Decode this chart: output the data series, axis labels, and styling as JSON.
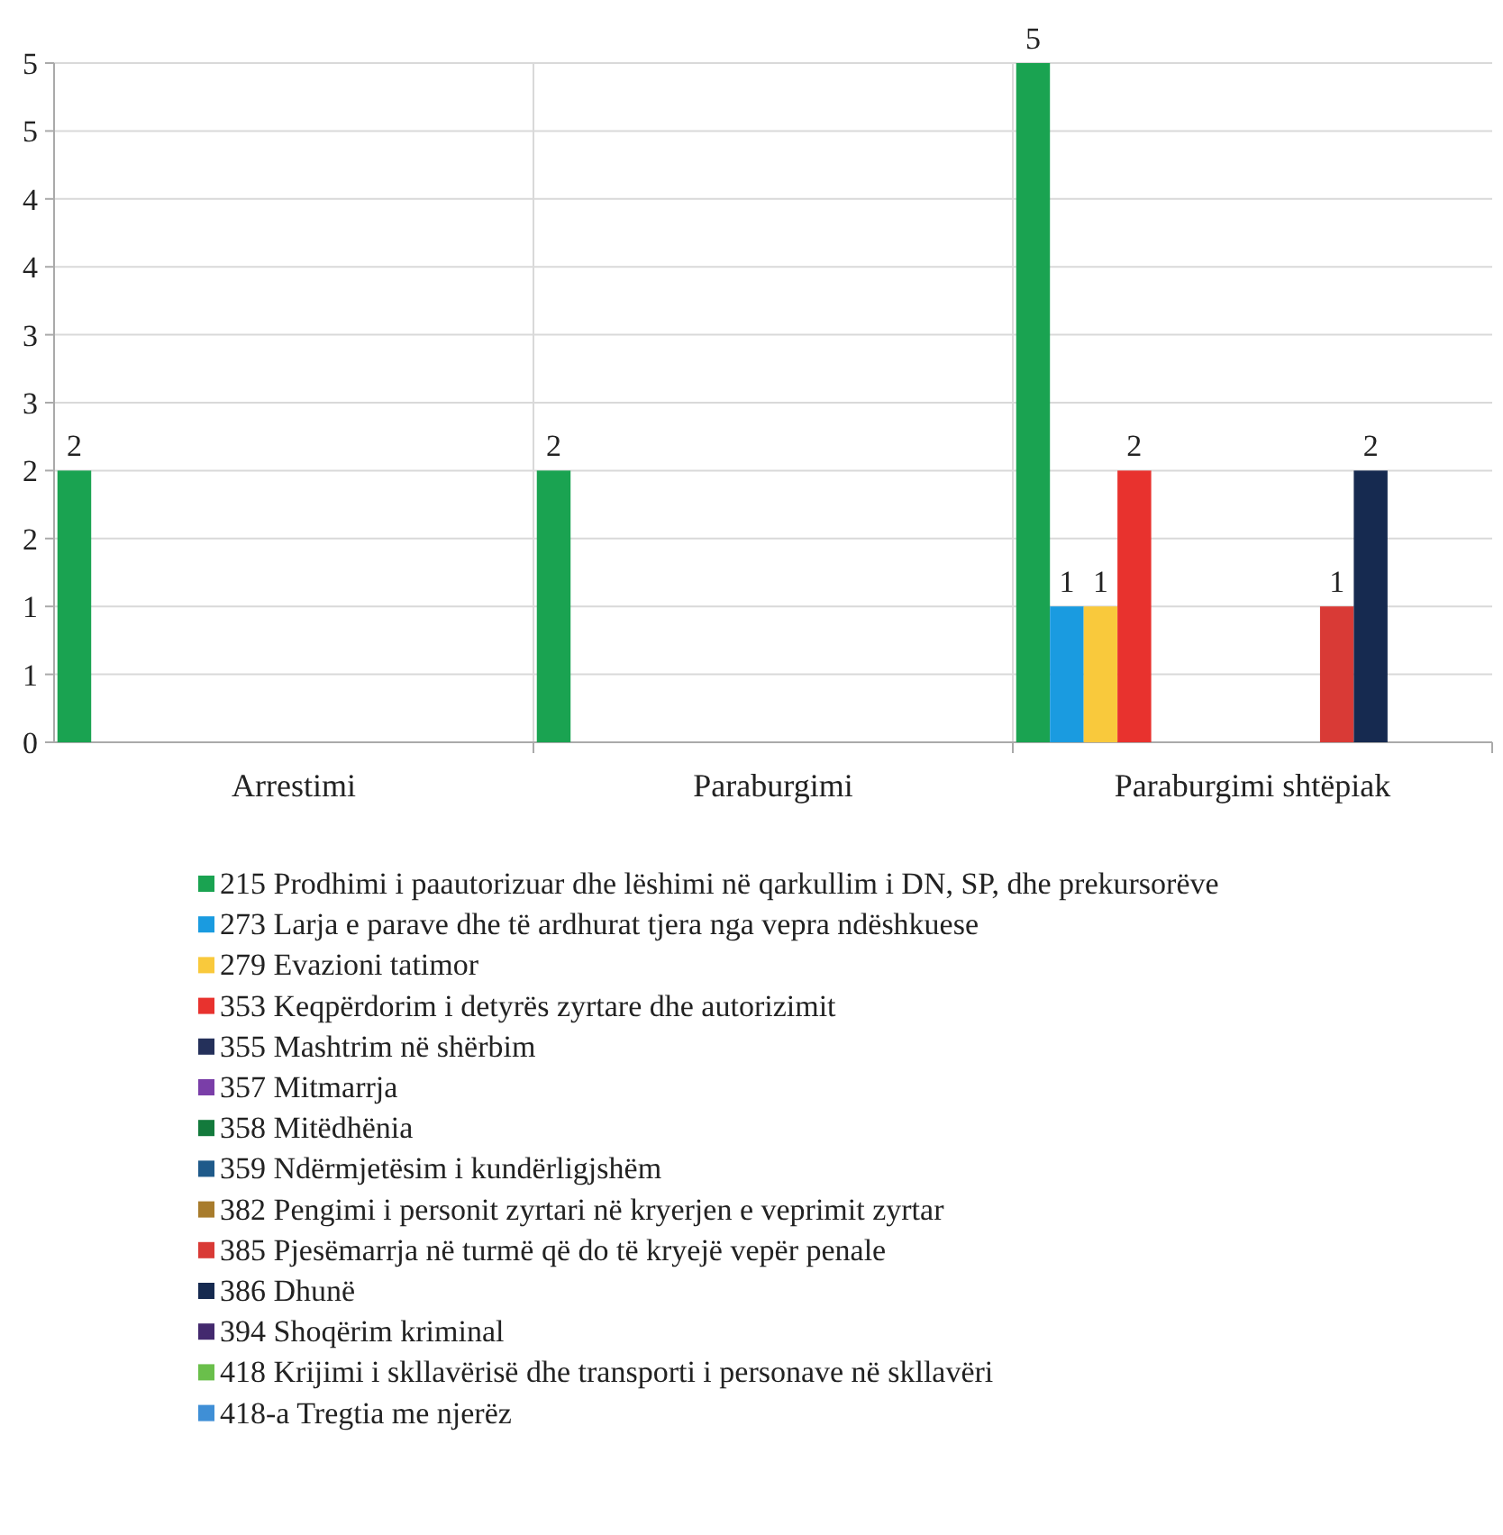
{
  "chart_data": {
    "type": "bar",
    "categories": [
      "Arrestimi",
      "Paraburgimi",
      "Paraburgimi shtëpiak"
    ],
    "series": [
      {
        "name": "215 Prodhimi i paautorizuar dhe lëshimi në qarkullim i DN, SP, dhe prekursorëve",
        "color": "#1aa351",
        "values": [
          2,
          2,
          5
        ]
      },
      {
        "name": "273 Larja e parave dhe të ardhurat tjera nga vepra ndëshkuese",
        "color": "#1a9be0",
        "values": [
          null,
          null,
          1
        ]
      },
      {
        "name": "279 Evazioni tatimor",
        "color": "#f9c93c",
        "values": [
          null,
          null,
          1
        ]
      },
      {
        "name": "353 Keqpërdorim i detyrës zyrtare dhe autorizimit",
        "color": "#e8322e",
        "values": [
          null,
          null,
          2
        ]
      },
      {
        "name": "355 Mashtrim në shërbim",
        "color": "#24305a",
        "values": [
          null,
          null,
          null
        ]
      },
      {
        "name": "357 Mitmarrja",
        "color": "#7a3ea8",
        "values": [
          null,
          null,
          null
        ]
      },
      {
        "name": "358 Mitëdhënia",
        "color": "#137a3c",
        "values": [
          null,
          null,
          null
        ]
      },
      {
        "name": "359 Ndërmjetësim i kundërligjshëm",
        "color": "#1f5a8a",
        "values": [
          null,
          null,
          null
        ]
      },
      {
        "name": "382 Pengimi i personit zyrtari në kryerjen e veprimit zyrtar",
        "color": "#a87c2c",
        "values": [
          null,
          null,
          null
        ]
      },
      {
        "name": "385 Pjesëmarrja në turmë që do të kryejë vepër penale",
        "color": "#d93a36",
        "values": [
          null,
          null,
          1
        ]
      },
      {
        "name": "386 Dhunë",
        "color": "#162a50",
        "values": [
          null,
          null,
          2
        ]
      },
      {
        "name": "394 Shoqërim kriminal",
        "color": "#43296e",
        "values": [
          null,
          null,
          null
        ]
      },
      {
        "name": "418 Krijimi i skllavërisë dhe transporti i personave në skllavëri",
        "color": "#6abf4b",
        "values": [
          null,
          null,
          null
        ]
      },
      {
        "name": "418-a Tregtia me njerëz",
        "color": "#3f8fd6",
        "values": [
          null,
          null,
          null
        ]
      }
    ],
    "ylim": [
      0,
      5
    ],
    "yticks": [
      0,
      {
        "value": 0.5,
        "label": "1"
      },
      1,
      {
        "value": 1.5,
        "label": "2"
      },
      2,
      {
        "value": 2.5,
        "label": "3"
      },
      3,
      {
        "value": 3.5,
        "label": "4"
      },
      4,
      {
        "value": 4.5,
        "label": "5"
      },
      5
    ],
    "grid": true,
    "data_labels": true,
    "legend": "bottom"
  }
}
